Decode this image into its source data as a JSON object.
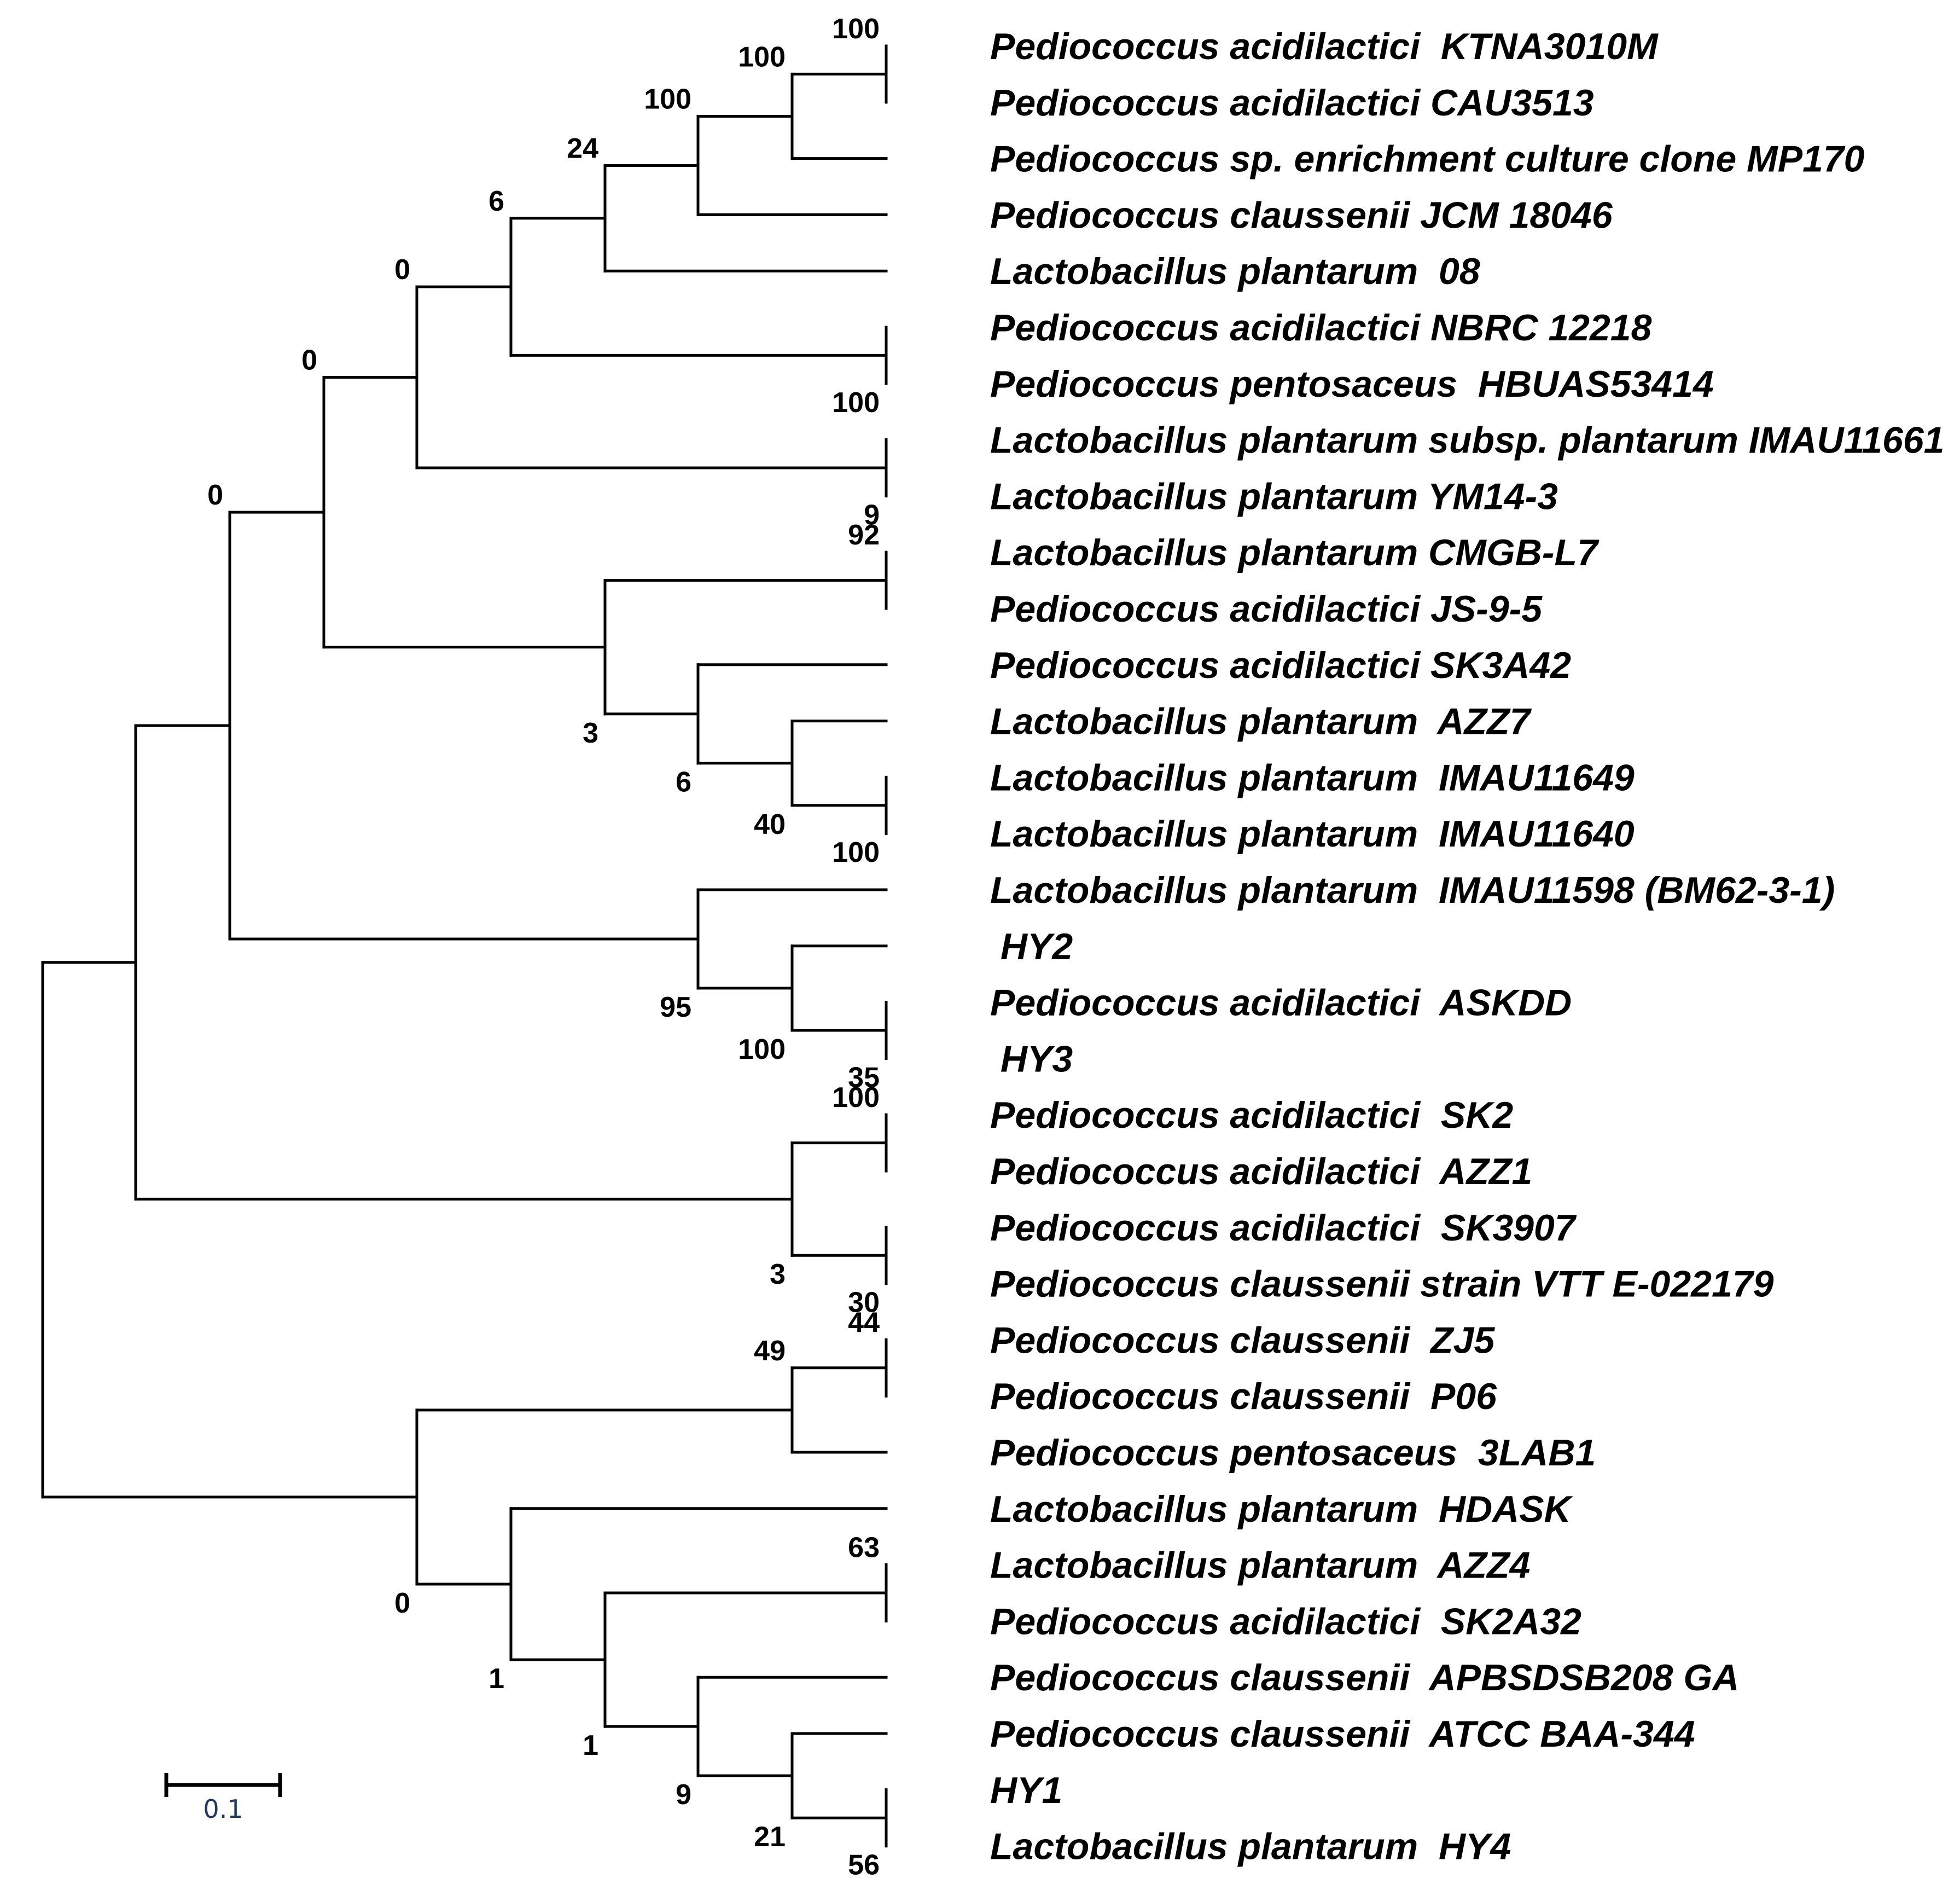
{
  "leaves": [
    {
      "id": "L1",
      "label": "Pediococcus acidilactici  KTNA3010M"
    },
    {
      "id": "L2",
      "label": "Pediococcus acidilactici CAU3513"
    },
    {
      "id": "L3",
      "label": "Pediococcus sp. enrichment culture clone MP170"
    },
    {
      "id": "L4",
      "label": "Pediococcus claussenii JCM 18046"
    },
    {
      "id": "L5",
      "label": "Lactobacillus plantarum  08"
    },
    {
      "id": "L6",
      "label": "Pediococcus acidilactici NBRC 12218"
    },
    {
      "id": "L7",
      "label": "Pediococcus pentosaceus  HBUAS53414"
    },
    {
      "id": "L8",
      "label": "Lactobacillus plantarum subsp. plantarum IMAU11661"
    },
    {
      "id": "L9",
      "label": "Lactobacillus plantarum YM14-3"
    },
    {
      "id": "L10",
      "label": "Lactobacillus plantarum CMGB-L7"
    },
    {
      "id": "L11",
      "label": "Pediococcus acidilactici JS-9-5"
    },
    {
      "id": "L12",
      "label": "Pediococcus acidilactici SK3A42"
    },
    {
      "id": "L13",
      "label": "Lactobacillus plantarum  AZZ7"
    },
    {
      "id": "L14",
      "label": "Lactobacillus plantarum  IMAU11649"
    },
    {
      "id": "L15",
      "label": "Lactobacillus plantarum  IMAU11640"
    },
    {
      "id": "L16",
      "label": "Lactobacillus plantarum  IMAU11598 (BM62-3-1)"
    },
    {
      "id": "L17",
      "label": " HY2"
    },
    {
      "id": "L18",
      "label": "Pediococcus acidilactici  ASKDD"
    },
    {
      "id": "L19",
      "label": " HY3"
    },
    {
      "id": "L20",
      "label": "Pediococcus acidilactici  SK2"
    },
    {
      "id": "L21",
      "label": "Pediococcus acidilactici  AZZ1"
    },
    {
      "id": "L22",
      "label": "Pediococcus acidilactici  SK3907"
    },
    {
      "id": "L23",
      "label": "Pediococcus claussenii strain VTT E-022179"
    },
    {
      "id": "L24",
      "label": "Pediococcus claussenii  ZJ5"
    },
    {
      "id": "L25",
      "label": "Pediococcus claussenii  P06"
    },
    {
      "id": "L26",
      "label": "Pediococcus pentosaceus  3LAB1"
    },
    {
      "id": "L27",
      "label": "Lactobacillus plantarum  HDASK"
    },
    {
      "id": "L28",
      "label": "Lactobacillus plantarum  AZZ4"
    },
    {
      "id": "L29",
      "label": "Pediococcus acidilactici  SK2A32"
    },
    {
      "id": "L30",
      "label": "Pediococcus claussenii  APBSDSB208 GA"
    },
    {
      "id": "L31",
      "label": "Pediococcus claussenii  ATCC BAA-344"
    },
    {
      "id": "L32",
      "label": "HY1"
    },
    {
      "id": "L33",
      "label": "Lactobacillus plantarum  HY4"
    }
  ],
  "nodes": [
    {
      "id": "n1",
      "support": "100",
      "children": [
        "L1",
        "L2"
      ]
    },
    {
      "id": "n2",
      "support": "100",
      "children": [
        "n1",
        "L3"
      ]
    },
    {
      "id": "n3",
      "support": "100",
      "children": [
        "n2",
        "L4"
      ]
    },
    {
      "id": "n4",
      "support": "24",
      "children": [
        "n3",
        "L5"
      ]
    },
    {
      "id": "n5",
      "support": "100",
      "children": [
        "L6",
        "L7"
      ]
    },
    {
      "id": "n6",
      "support": "6",
      "children": [
        "n4",
        "n5"
      ]
    },
    {
      "id": "n7",
      "support": "9",
      "children": [
        "L8",
        "L9"
      ]
    },
    {
      "id": "n8",
      "support": "0",
      "children": [
        "n6",
        "n7"
      ]
    },
    {
      "id": "n9",
      "support": "92",
      "children": [
        "L10",
        "L11"
      ]
    },
    {
      "id": "n10",
      "support": "100",
      "children": [
        "L14",
        "L15"
      ]
    },
    {
      "id": "n11",
      "support": "40",
      "children": [
        "L13",
        "n10"
      ]
    },
    {
      "id": "n12",
      "support": "6",
      "children": [
        "L12",
        "n11"
      ]
    },
    {
      "id": "n13",
      "support": "3",
      "children": [
        "n9",
        "n12"
      ]
    },
    {
      "id": "n14",
      "support": "0",
      "children": [
        "n8",
        "n13"
      ]
    },
    {
      "id": "n15",
      "support": "35",
      "children": [
        "L18",
        "L19"
      ]
    },
    {
      "id": "n16",
      "support": "100",
      "children": [
        "L17",
        "n15"
      ]
    },
    {
      "id": "n17",
      "support": "95",
      "children": [
        "L16",
        "n16"
      ]
    },
    {
      "id": "n18",
      "support": "0",
      "children": [
        "n14",
        "n17"
      ]
    },
    {
      "id": "n19",
      "support": "100",
      "children": [
        "L20",
        "L21"
      ]
    },
    {
      "id": "n20",
      "support": "30",
      "children": [
        "L22",
        "L23"
      ]
    },
    {
      "id": "n21",
      "support": "3",
      "children": [
        "n19",
        "n20"
      ]
    },
    {
      "id": "n22",
      "support": "",
      "children": [
        "n18",
        "n21"
      ]
    },
    {
      "id": "n23",
      "support": "44",
      "children": [
        "L24",
        "L25"
      ]
    },
    {
      "id": "n24",
      "support": "49",
      "children": [
        "n23",
        "L26"
      ]
    },
    {
      "id": "n25",
      "support": "63",
      "children": [
        "L28",
        "L29"
      ]
    },
    {
      "id": "n26",
      "support": "56",
      "children": [
        "L32",
        "L33"
      ]
    },
    {
      "id": "n27",
      "support": "21",
      "children": [
        "L31",
        "n26"
      ]
    },
    {
      "id": "n28",
      "support": "9",
      "children": [
        "L30",
        "n27"
      ]
    },
    {
      "id": "n29",
      "support": "1",
      "children": [
        "n25",
        "n28"
      ]
    },
    {
      "id": "n30",
      "support": "1",
      "children": [
        "L27",
        "n29"
      ]
    },
    {
      "id": "n31",
      "support": "0",
      "children": [
        "n24",
        "n30"
      ]
    },
    {
      "id": "n32",
      "support": "",
      "children": [
        "n22",
        "n31"
      ]
    }
  ],
  "scale_bar": {
    "label": "0.1"
  },
  "colors": {
    "branch": "#000000",
    "text": "#000000",
    "scale_label": "#1f3a5a"
  }
}
